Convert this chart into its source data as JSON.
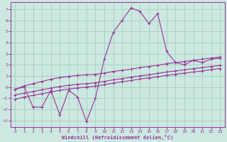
{
  "bg_color": "#cce8e0",
  "line_color": "#993399",
  "grid_color": "#99ccbb",
  "xlabel": "Windchill (Refroidissement éolien,°C)",
  "xlim": [
    -0.5,
    23.5
  ],
  "ylim": [
    -3.6,
    7.6
  ],
  "xticks": [
    0,
    1,
    2,
    3,
    4,
    5,
    6,
    7,
    8,
    9,
    10,
    11,
    12,
    13,
    14,
    15,
    16,
    17,
    18,
    19,
    20,
    21,
    22,
    23
  ],
  "yticks": [
    -3,
    -2,
    -1,
    0,
    1,
    2,
    3,
    4,
    5,
    6,
    7
  ],
  "x": [
    0,
    1,
    2,
    3,
    4,
    5,
    6,
    7,
    8,
    9,
    10,
    11,
    12,
    13,
    14,
    15,
    16,
    17,
    18,
    19,
    20,
    21,
    22,
    23
  ],
  "line_jagged": [
    -0.2,
    0.0,
    -1.8,
    -1.8,
    -0.3,
    -2.5,
    -0.3,
    -0.9,
    -3.1,
    -1.0,
    2.5,
    4.9,
    6.0,
    7.1,
    6.8,
    5.7,
    6.6,
    3.2,
    2.2,
    2.0,
    2.4,
    2.2,
    2.5,
    2.6
  ],
  "line_a": [
    -0.2,
    0.1,
    0.3,
    0.5,
    0.7,
    0.85,
    0.95,
    1.05,
    1.1,
    1.15,
    1.25,
    1.4,
    1.5,
    1.6,
    1.75,
    1.85,
    1.95,
    2.1,
    2.2,
    2.3,
    2.4,
    2.5,
    2.6,
    2.7
  ],
  "line_b": [
    -0.7,
    -0.55,
    -0.4,
    -0.25,
    -0.1,
    0.05,
    0.15,
    0.25,
    0.3,
    0.38,
    0.5,
    0.65,
    0.75,
    0.88,
    1.0,
    1.1,
    1.22,
    1.35,
    1.45,
    1.55,
    1.65,
    1.75,
    1.85,
    1.95
  ],
  "line_c": [
    -1.1,
    -0.9,
    -0.75,
    -0.6,
    -0.45,
    -0.3,
    -0.18,
    -0.08,
    0.0,
    0.08,
    0.2,
    0.35,
    0.48,
    0.58,
    0.72,
    0.82,
    0.92,
    1.05,
    1.15,
    1.25,
    1.35,
    1.45,
    1.56,
    1.66
  ]
}
